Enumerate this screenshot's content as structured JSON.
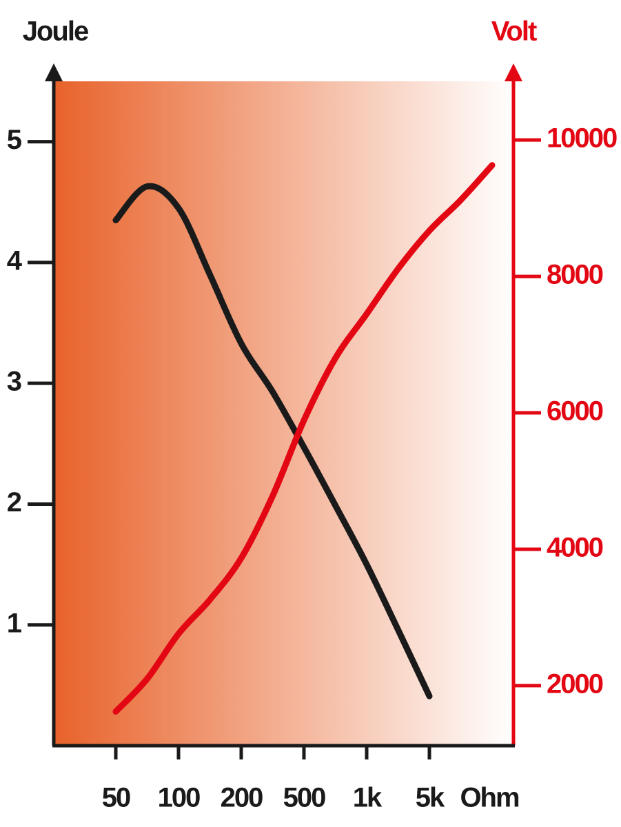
{
  "chart_data": {
    "type": "line",
    "y_label": "Joule",
    "y2_label": "Volt",
    "x_label": "Ohm",
    "categories": [
      "50",
      null,
      "100",
      null,
      "200",
      null,
      "500",
      null,
      "1k",
      null,
      "5k",
      null,
      null
    ],
    "series": [
      {
        "name": "Joule",
        "color": "#1a1a1a",
        "values": [
          4.35,
          4.63,
          4.45,
          3.9,
          3.33,
          2.93,
          2.47,
          1.99,
          1.5,
          0.96,
          0.41,
          null,
          null
        ]
      },
      {
        "name": "Volt",
        "color": "#e30613",
        "axis": "y2",
        "values": [
          1620,
          2100,
          2760,
          3260,
          3870,
          4780,
          5890,
          6800,
          7450,
          8110,
          8670,
          9120,
          9630
        ]
      }
    ],
    "ylim": [
      0,
      5.5
    ],
    "yticks": [
      1,
      2,
      3,
      4,
      5
    ],
    "y2lim": [
      1120,
      10860
    ],
    "y2ticks": [
      2000,
      4000,
      6000,
      8000,
      10000
    ],
    "background_gradient": [
      "#e8622a",
      "#ffffff"
    ],
    "y2_color": "#e30613"
  }
}
